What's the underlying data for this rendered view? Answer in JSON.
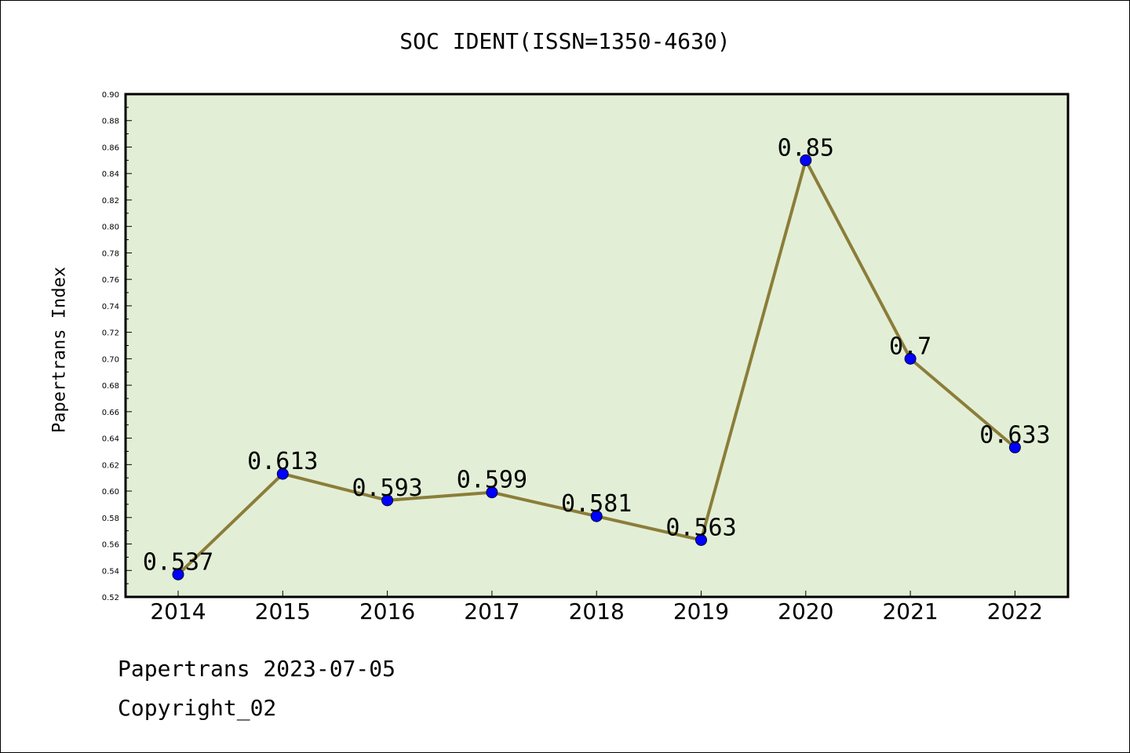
{
  "chart_data": {
    "type": "line",
    "title": "SOC IDENT(ISSN=1350-4630)",
    "xlabel": "",
    "ylabel": "Papertrans Index",
    "categories": [
      "2014",
      "2015",
      "2016",
      "2017",
      "2018",
      "2019",
      "2020",
      "2021",
      "2022"
    ],
    "values": [
      0.537,
      0.613,
      0.593,
      0.599,
      0.581,
      0.563,
      0.85,
      0.7,
      0.633
    ],
    "data_labels": [
      "0.537",
      "0.613",
      "0.593",
      "0.599",
      "0.581",
      "0.563",
      "0.85",
      "0.7",
      "0.633"
    ],
    "ylim": [
      0.52,
      0.9
    ],
    "yticks": [
      "0.52",
      "0.54",
      "0.56",
      "0.58",
      "0.60",
      "0.62",
      "0.64",
      "0.66",
      "0.68",
      "0.70",
      "0.72",
      "0.74",
      "0.76",
      "0.78",
      "0.80",
      "0.82",
      "0.84",
      "0.86",
      "0.88",
      "0.90"
    ],
    "grid": false,
    "colors": {
      "plot_background": "#e2efd6",
      "line": "#8b7d3a",
      "marker": "#0000ff"
    }
  },
  "footer": {
    "line1": "Papertrans 2023-07-05",
    "line2": "Copyright_02"
  }
}
